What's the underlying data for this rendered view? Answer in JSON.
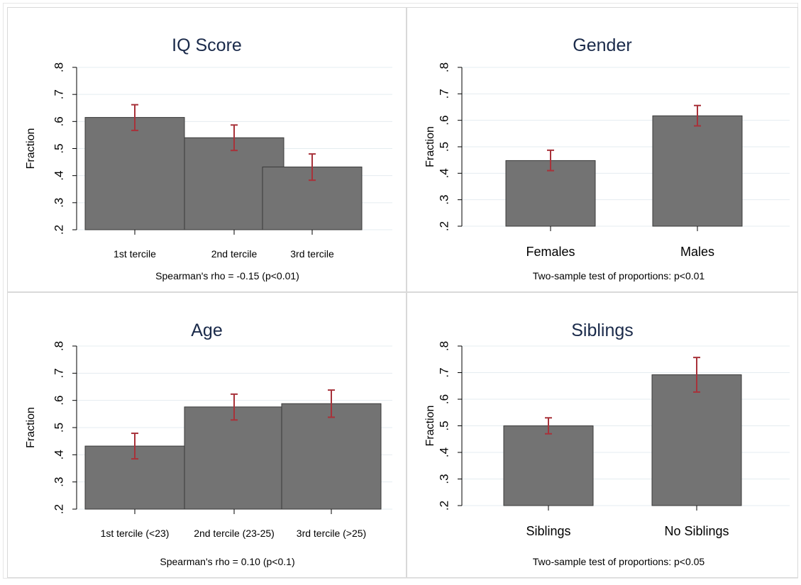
{
  "colors": {
    "bar_fill": "#737373",
    "bar_edge": "#3a3a3a",
    "error_bar": "#a8323a",
    "title": "#1a2a4a",
    "panel_border": "#d9d9d9",
    "gridline": "#e4ecf0",
    "axis": "#000000"
  },
  "chart_data": [
    {
      "type": "bar",
      "title": "IQ Score",
      "ylabel": "Fraction",
      "note": "Spearman's rho = -0.15 (p<0.01)",
      "ylim": [
        0.2,
        0.8
      ],
      "yticks": [
        0.2,
        0.3,
        0.4,
        0.5,
        0.6,
        0.7,
        0.8
      ],
      "ytick_labels": [
        ".2",
        ".3",
        ".4",
        ".5",
        ".6",
        ".7",
        ".8"
      ],
      "categories": [
        "1st tercile",
        "2nd tercile",
        "3rd tercile"
      ],
      "values": [
        0.615,
        0.54,
        0.432
      ],
      "error_low": [
        0.567,
        0.493,
        0.383
      ],
      "error_high": [
        0.662,
        0.587,
        0.48
      ],
      "grid": true
    },
    {
      "type": "bar",
      "title": "Gender",
      "ylabel": "Fraction",
      "note": "Two-sample test of proportions: p<0.01",
      "ylim": [
        0.2,
        0.8
      ],
      "yticks": [
        0.2,
        0.3,
        0.4,
        0.5,
        0.6,
        0.7,
        0.8
      ],
      "ytick_labels": [
        ".2",
        ".3",
        ".4",
        ".5",
        ".6",
        ".7",
        ".8"
      ],
      "categories": [
        "Females",
        "Males"
      ],
      "values": [
        0.448,
        0.617
      ],
      "error_low": [
        0.41,
        0.579
      ],
      "error_high": [
        0.487,
        0.656
      ],
      "grid": true
    },
    {
      "type": "bar",
      "title": "Age",
      "ylabel": "Fraction",
      "note": "Spearman's rho = 0.10 (p<0.1)",
      "ylim": [
        0.2,
        0.8
      ],
      "yticks": [
        0.2,
        0.3,
        0.4,
        0.5,
        0.6,
        0.7,
        0.8
      ],
      "ytick_labels": [
        ".2",
        ".3",
        ".4",
        ".5",
        ".6",
        ".7",
        ".8"
      ],
      "categories": [
        "1st tercile (<23)",
        "2nd tercile (23-25)",
        "3rd tercile (>25)"
      ],
      "values": [
        0.432,
        0.576,
        0.588
      ],
      "error_low": [
        0.385,
        0.528,
        0.538
      ],
      "error_high": [
        0.479,
        0.623,
        0.638
      ],
      "grid": true
    },
    {
      "type": "bar",
      "title": "Siblings",
      "ylabel": "Fraction",
      "note": "Two-sample test of proportions: p<0.05",
      "ylim": [
        0.2,
        0.8
      ],
      "yticks": [
        0.2,
        0.3,
        0.4,
        0.5,
        0.6,
        0.7,
        0.8
      ],
      "ytick_labels": [
        ".2",
        ".3",
        ".4",
        ".5",
        ".6",
        ".7",
        ".8"
      ],
      "categories": [
        "Siblings",
        "No Siblings"
      ],
      "values": [
        0.5,
        0.692
      ],
      "error_low": [
        0.47,
        0.627
      ],
      "error_high": [
        0.53,
        0.757
      ],
      "grid": true
    }
  ]
}
